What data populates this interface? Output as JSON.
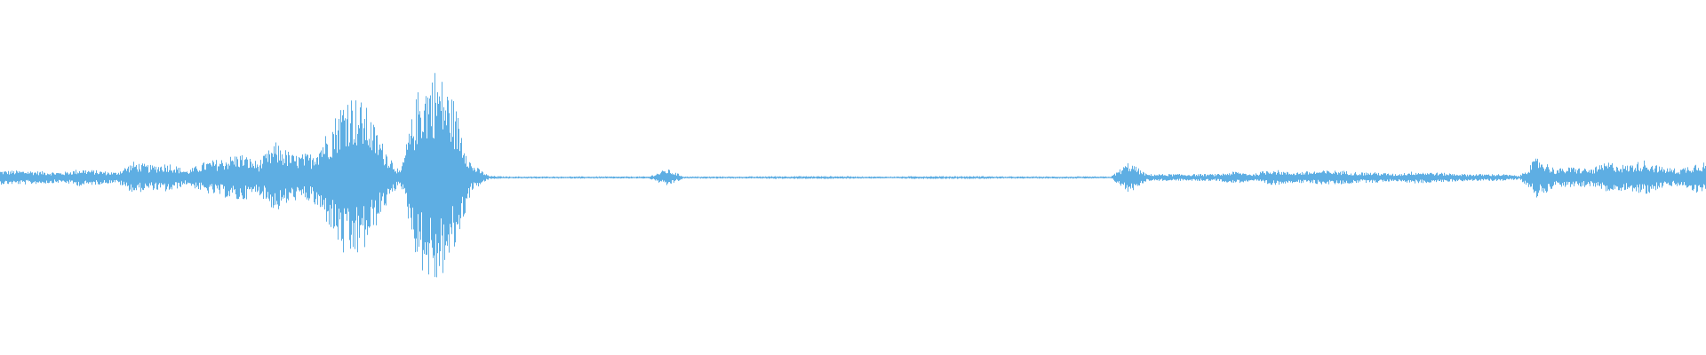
{
  "chart_data": {
    "type": "area",
    "title": "",
    "xlabel": "",
    "ylabel": "",
    "ylim": [
      -1,
      1
    ],
    "grid": false,
    "legend": "none",
    "color": "#5eaee3",
    "background": "#ffffff",
    "envelope_bins": 96,
    "envelope": [
      0.04,
      0.04,
      0.035,
      0.03,
      0.05,
      0.04,
      0.03,
      0.09,
      0.07,
      0.085,
      0.04,
      0.09,
      0.11,
      0.14,
      0.09,
      0.2,
      0.13,
      0.14,
      0.28,
      0.5,
      0.42,
      0.2,
      0.03,
      0.5,
      0.63,
      0.45,
      0.08,
      0.01,
      0.006,
      0.006,
      0.006,
      0.006,
      0.006,
      0.006,
      0.006,
      0.006,
      0.006,
      0.05,
      0.006,
      0.006,
      0.006,
      0.006,
      0.006,
      0.008,
      0.008,
      0.008,
      0.008,
      0.008,
      0.006,
      0.006,
      0.006,
      0.008,
      0.008,
      0.008,
      0.008,
      0.008,
      0.006,
      0.006,
      0.006,
      0.006,
      0.006,
      0.006,
      0.006,
      0.09,
      0.02,
      0.02,
      0.02,
      0.02,
      0.02,
      0.035,
      0.02,
      0.05,
      0.03,
      0.035,
      0.04,
      0.04,
      0.03,
      0.03,
      0.02,
      0.035,
      0.03,
      0.025,
      0.02,
      0.02,
      0.02,
      0.01,
      0.12,
      0.05,
      0.06,
      0.05,
      0.09,
      0.07,
      0.1,
      0.06,
      0.05,
      0.09
    ]
  }
}
